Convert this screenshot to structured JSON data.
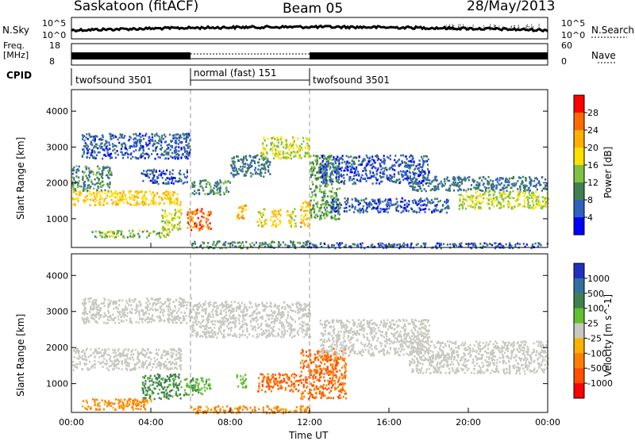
{
  "header": {
    "station": "Saskatoon (fitACF)",
    "beam": "Beam 05",
    "date": "28/May/2013"
  },
  "noise": {
    "left_label": "N.Sky",
    "right_label": "N.Search",
    "ticks_left": [
      "10^5",
      "10^0"
    ],
    "ticks_right": [
      "10^5",
      "10^0"
    ]
  },
  "freq": {
    "left_label_1": "Freq.",
    "left_label_2": "[MHz]",
    "ticks_left": [
      "18",
      "8"
    ],
    "ticks_right": [
      "60",
      "0"
    ],
    "right_label": "Nave"
  },
  "cpid": {
    "label": "CPID",
    "segments": [
      {
        "text": "twofsound 3501",
        "start": 0,
        "end": 6
      },
      {
        "text": "normal (fast) 151",
        "start": 6,
        "end": 12
      },
      {
        "text": "twofsound 3501",
        "start": 12,
        "end": 24
      }
    ]
  },
  "chart_data": [
    {
      "type": "heatmap",
      "title": "Power",
      "ylabel": "Slant Range [km]",
      "xlim": [
        0,
        24
      ],
      "ylim": [
        200,
        4600
      ],
      "yticks": [
        "1000",
        "2000",
        "3000",
        "4000"
      ],
      "colorbar": {
        "label": "Power [dB]",
        "ticks": [
          "28",
          "24",
          "20",
          "16",
          "12",
          "8",
          "4"
        ],
        "colors": [
          "#ff0000",
          "#ff6a00",
          "#ffb000",
          "#ffe000",
          "#80c040",
          "#408050",
          "#3060c0",
          "#0000ff"
        ]
      },
      "bands": [
        {
          "t0": 0.0,
          "t1": 5.5,
          "r0": 1400,
          "r1": 1800,
          "level": 22
        },
        {
          "t0": 0.0,
          "t1": 2.0,
          "r0": 1800,
          "r1": 2500,
          "level": 12
        },
        {
          "t0": 0.5,
          "t1": 6.0,
          "r0": 2700,
          "r1": 3400,
          "level": 8
        },
        {
          "t0": 1.0,
          "t1": 5.0,
          "r0": 500,
          "r1": 700,
          "level": 16
        },
        {
          "t0": 3.5,
          "t1": 5.8,
          "r0": 2000,
          "r1": 2400,
          "level": 8
        },
        {
          "t0": 4.5,
          "t1": 5.5,
          "r0": 700,
          "r1": 1300,
          "level": 18
        },
        {
          "t0": 5.8,
          "t1": 7.0,
          "r0": 700,
          "r1": 1300,
          "level": 28
        },
        {
          "t0": 6.0,
          "t1": 8.0,
          "r0": 1700,
          "r1": 2100,
          "level": 12
        },
        {
          "t0": 8.0,
          "t1": 10.0,
          "r0": 2200,
          "r1": 2800,
          "level": 10
        },
        {
          "t0": 9.5,
          "t1": 12.0,
          "r0": 2700,
          "r1": 3300,
          "level": 18
        },
        {
          "t0": 8.3,
          "t1": 8.8,
          "r0": 1000,
          "r1": 1400,
          "level": 24
        },
        {
          "t0": 9.3,
          "t1": 9.8,
          "r0": 800,
          "r1": 1300,
          "level": 20
        },
        {
          "t0": 10.0,
          "t1": 10.5,
          "r0": 800,
          "r1": 1300,
          "level": 22
        },
        {
          "t0": 10.8,
          "t1": 11.3,
          "r0": 800,
          "r1": 1300,
          "level": 20
        },
        {
          "t0": 11.5,
          "t1": 12.0,
          "r0": 800,
          "r1": 1500,
          "level": 24
        },
        {
          "t0": 12.0,
          "t1": 13.5,
          "r0": 1000,
          "r1": 2800,
          "level": 14
        },
        {
          "t0": 12.5,
          "t1": 18.0,
          "r0": 2000,
          "r1": 2800,
          "level": 8
        },
        {
          "t0": 13.0,
          "t1": 19.0,
          "r0": 1200,
          "r1": 1600,
          "level": 8
        },
        {
          "t0": 17.0,
          "t1": 24.0,
          "r0": 1800,
          "r1": 2200,
          "level": 10
        },
        {
          "t0": 19.5,
          "t1": 24.0,
          "r0": 1300,
          "r1": 1800,
          "level": 18
        },
        {
          "t0": 6.0,
          "t1": 12.0,
          "r0": 200,
          "r1": 400,
          "level": 12
        },
        {
          "t0": 12.0,
          "t1": 24.0,
          "r0": 200,
          "r1": 350,
          "level": 8
        }
      ]
    },
    {
      "type": "heatmap",
      "title": "Velocity",
      "ylabel": "Slant Range [km]",
      "xlabel": "Time UT",
      "xlim": [
        0,
        24
      ],
      "ylim": [
        200,
        4600
      ],
      "yticks": [
        "1000",
        "2000",
        "3000",
        "4000"
      ],
      "xticks": [
        "00:00",
        "04:00",
        "08:00",
        "12:00",
        "16:00",
        "20:00",
        "00:00"
      ],
      "colorbar": {
        "label": "Velocity [m s^-1]",
        "ticks": [
          "1000",
          "500",
          "100",
          "25",
          "-25",
          "-100",
          "-500",
          "-1000"
        ],
        "colors": [
          "#2030c0",
          "#3070a0",
          "#408050",
          "#60c030",
          "#c8c8c0",
          "#ffb000",
          "#ff8000",
          "#ff5000",
          "#ff0000"
        ]
      },
      "bands": [
        {
          "t0": 0.0,
          "t1": 5.5,
          "r0": 1400,
          "r1": 2000,
          "level": 0
        },
        {
          "t0": 0.5,
          "t1": 6.0,
          "r0": 2700,
          "r1": 3400,
          "level": 0
        },
        {
          "t0": 3.5,
          "t1": 5.5,
          "r0": 600,
          "r1": 1300,
          "level": 150
        },
        {
          "t0": 5.6,
          "t1": 7.0,
          "r0": 700,
          "r1": 1200,
          "level": 80
        },
        {
          "t0": 0.5,
          "t1": 4.0,
          "r0": 300,
          "r1": 600,
          "level": -150
        },
        {
          "t0": 6.0,
          "t1": 12.0,
          "r0": 2300,
          "r1": 3300,
          "level": 0
        },
        {
          "t0": 8.3,
          "t1": 8.8,
          "r0": 900,
          "r1": 1300,
          "level": 40
        },
        {
          "t0": 9.3,
          "t1": 11.5,
          "r0": 800,
          "r1": 1300,
          "level": -300
        },
        {
          "t0": 11.5,
          "t1": 13.8,
          "r0": 600,
          "r1": 2000,
          "level": -300
        },
        {
          "t0": 12.5,
          "t1": 18.0,
          "r0": 1800,
          "r1": 2800,
          "level": 0
        },
        {
          "t0": 17.0,
          "t1": 24.0,
          "r0": 1300,
          "r1": 2200,
          "level": 0
        },
        {
          "t0": 6.0,
          "t1": 12.0,
          "r0": 200,
          "r1": 400,
          "level": -150
        }
      ]
    }
  ]
}
